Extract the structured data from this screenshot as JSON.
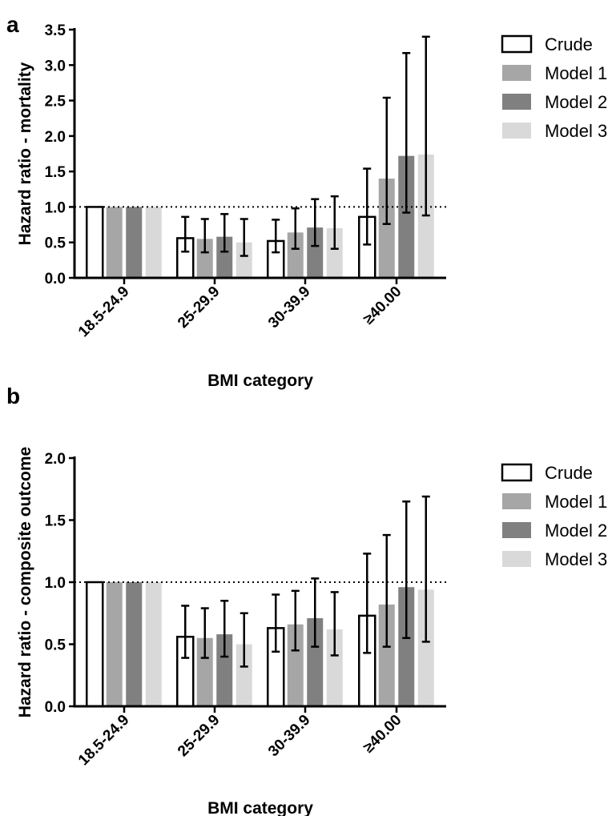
{
  "chart_data": [
    {
      "panel": "a",
      "type": "bar",
      "categories": [
        "18.5-24.9",
        "25-29.9",
        "30-39.9",
        "≥40.00"
      ],
      "xlabel": "BMI category",
      "ylabel": "Hazard ratio - mortality",
      "ylim": [
        0,
        3.5
      ],
      "yticks": [
        "0.0",
        "0.5",
        "1.0",
        "1.5",
        "2.0",
        "2.5",
        "3.0",
        "3.5"
      ],
      "reference_line": 1.0,
      "legend_position": "right",
      "series": [
        {
          "name": "Crude",
          "color": "#ffffff",
          "values": [
            1.0,
            0.56,
            0.52,
            0.86
          ],
          "lower": [
            1.0,
            0.37,
            0.36,
            0.47
          ],
          "upper": [
            1.0,
            0.86,
            0.82,
            1.54
          ]
        },
        {
          "name": "Model 1",
          "color": "#a6a6a6",
          "values": [
            1.0,
            0.55,
            0.64,
            1.4
          ],
          "lower": [
            1.0,
            0.36,
            0.41,
            0.76
          ],
          "upper": [
            1.0,
            0.83,
            0.98,
            2.54
          ]
        },
        {
          "name": "Model 2",
          "color": "#808080",
          "values": [
            1.0,
            0.58,
            0.71,
            1.72
          ],
          "lower": [
            1.0,
            0.37,
            0.45,
            0.92
          ],
          "upper": [
            1.0,
            0.9,
            1.11,
            3.17
          ]
        },
        {
          "name": "Model 3",
          "color": "#d9d9d9",
          "values": [
            1.0,
            0.5,
            0.7,
            1.74
          ],
          "lower": [
            1.0,
            0.31,
            0.41,
            0.88
          ],
          "upper": [
            1.0,
            0.83,
            1.15,
            3.4
          ]
        }
      ]
    },
    {
      "panel": "b",
      "type": "bar",
      "categories": [
        "18.5-24.9",
        "25-29.9",
        "30-39.9",
        "≥40.00"
      ],
      "xlabel": "BMI category",
      "ylabel": "Hazard ratio - composite outcome",
      "ylim": [
        0,
        2.0
      ],
      "yticks": [
        "0.0",
        "0.5",
        "1.0",
        "1.5",
        "2.0"
      ],
      "reference_line": 1.0,
      "legend_position": "right",
      "series": [
        {
          "name": "Crude",
          "color": "#ffffff",
          "values": [
            1.0,
            0.56,
            0.63,
            0.73
          ],
          "lower": [
            1.0,
            0.39,
            0.44,
            0.43
          ],
          "upper": [
            1.0,
            0.81,
            0.9,
            1.23
          ]
        },
        {
          "name": "Model 1",
          "color": "#a6a6a6",
          "values": [
            1.0,
            0.55,
            0.66,
            0.82
          ],
          "lower": [
            1.0,
            0.39,
            0.45,
            0.48
          ],
          "upper": [
            1.0,
            0.79,
            0.93,
            1.38
          ]
        },
        {
          "name": "Model 2",
          "color": "#808080",
          "values": [
            1.0,
            0.58,
            0.71,
            0.96
          ],
          "lower": [
            1.0,
            0.4,
            0.48,
            0.55
          ],
          "upper": [
            1.0,
            0.85,
            1.03,
            1.65
          ]
        },
        {
          "name": "Model 3",
          "color": "#d9d9d9",
          "values": [
            1.0,
            0.5,
            0.62,
            0.94
          ],
          "lower": [
            1.0,
            0.32,
            0.41,
            0.52
          ],
          "upper": [
            1.0,
            0.75,
            0.92,
            1.69
          ]
        }
      ]
    }
  ]
}
